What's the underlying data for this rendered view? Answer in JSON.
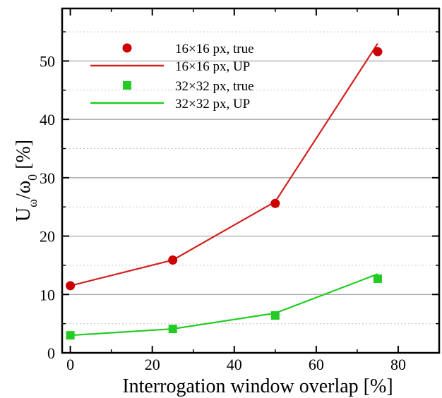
{
  "chart_data": {
    "type": "line",
    "xlabel": "Interrogation window overlap [%]",
    "ylabel": {
      "main": "U",
      "sub1": "ω",
      "mid": "/ω",
      "sub2": "0",
      "unit": " [%]"
    },
    "xlim": [
      -2,
      90
    ],
    "ylim": [
      0,
      59
    ],
    "xticks": [
      0,
      20,
      40,
      60,
      80
    ],
    "yticks": [
      0,
      10,
      20,
      30,
      40,
      50
    ],
    "xtick_labels": [
      "0",
      "20",
      "40",
      "60",
      "80"
    ],
    "ytick_labels": [
      "0",
      "10",
      "20",
      "30",
      "40",
      "50"
    ],
    "grid": "horizontal dotted at minor, solid at major",
    "legend_position": "top-left",
    "series": [
      {
        "name": "16×16 px, true",
        "kind": "marker",
        "marker": "circle",
        "color": "#cc0000",
        "x": [
          0,
          25,
          50,
          75
        ],
        "y": [
          11.5,
          15.9,
          25.6,
          51.6
        ]
      },
      {
        "name": "16×16 px, UP",
        "kind": "line",
        "color": "#d42020",
        "x": [
          0,
          25,
          50,
          75
        ],
        "y": [
          11.5,
          15.9,
          25.9,
          53.0
        ]
      },
      {
        "name": "32×32 px, true",
        "kind": "marker",
        "marker": "square",
        "color": "#22cc22",
        "x": [
          0,
          25,
          50,
          75
        ],
        "y": [
          3.0,
          4.1,
          6.4,
          12.7
        ]
      },
      {
        "name": "32×32 px, UP",
        "kind": "line",
        "color": "#22cc22",
        "x": [
          0,
          25,
          50,
          75
        ],
        "y": [
          3.0,
          4.1,
          6.8,
          13.5
        ]
      }
    ]
  }
}
